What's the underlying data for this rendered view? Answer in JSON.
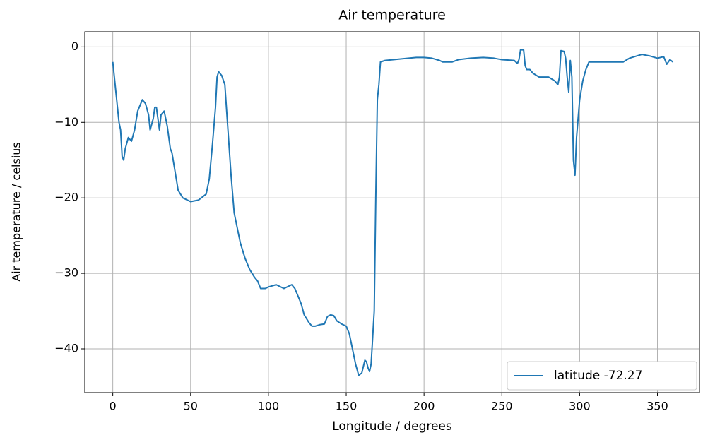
{
  "chart_data": {
    "type": "line",
    "title": "Air temperature",
    "x_label": "Longitude / degrees",
    "y_label": "Air temperature / celsius",
    "series": [
      {
        "name": "latitude -72.27",
        "color": "#1f77b4",
        "x": [
          0,
          2,
          4,
          5,
          6,
          7,
          8,
          10,
          12,
          14,
          16,
          18,
          19,
          21,
          23,
          24,
          26,
          27,
          28,
          30,
          31,
          33,
          35,
          37,
          38,
          40,
          42,
          45,
          50,
          55,
          60,
          62,
          64,
          66,
          67,
          68,
          70,
          72,
          74,
          76,
          78,
          80,
          82,
          85,
          88,
          91,
          93,
          95,
          98,
          100,
          105,
          110,
          113,
          115,
          117,
          119,
          121,
          123,
          126,
          128,
          130,
          133,
          136,
          138,
          140,
          142,
          144,
          147,
          150,
          152,
          154,
          156,
          158,
          160,
          162,
          163,
          164,
          165,
          166,
          168,
          169,
          170,
          171,
          172,
          175,
          185,
          195,
          200,
          205,
          210,
          212,
          218,
          222,
          230,
          238,
          245,
          250,
          258,
          260,
          261,
          262,
          264,
          265,
          266,
          268,
          270,
          274,
          280,
          284,
          286,
          287,
          288,
          290,
          291,
          292,
          293,
          294,
          295,
          296,
          297,
          298,
          300,
          302,
          304,
          306,
          312,
          320,
          328,
          332,
          340,
          345,
          350,
          354,
          356,
          358,
          360
        ],
        "values": [
          -2,
          -6,
          -10,
          -11,
          -14.5,
          -15,
          -13.5,
          -12,
          -12.5,
          -11,
          -8.5,
          -7.5,
          -7,
          -7.5,
          -9,
          -11,
          -9.5,
          -8,
          -8,
          -11,
          -9,
          -8.5,
          -10.5,
          -13.5,
          -14,
          -16.5,
          -19,
          -20,
          -20.5,
          -20.3,
          -19.5,
          -17.5,
          -13,
          -8,
          -4,
          -3.3,
          -3.8,
          -5,
          -11,
          -17,
          -22,
          -24,
          -26,
          -28,
          -29.5,
          -30.5,
          -31,
          -32,
          -32,
          -31.8,
          -31.5,
          -32,
          -31.7,
          -31.5,
          -32,
          -33,
          -34,
          -35.5,
          -36.5,
          -37,
          -37,
          -36.8,
          -36.7,
          -35.7,
          -35.5,
          -35.6,
          -36.3,
          -36.7,
          -37,
          -38,
          -40,
          -42,
          -43.5,
          -43.2,
          -41.5,
          -41.7,
          -42.5,
          -43,
          -42,
          -35,
          -20,
          -7,
          -5,
          -2,
          -1.8,
          -1.6,
          -1.4,
          -1.4,
          -1.5,
          -1.8,
          -2,
          -2,
          -1.7,
          -1.5,
          -1.4,
          -1.5,
          -1.7,
          -1.8,
          -2.2,
          -1.7,
          -0.4,
          -0.4,
          -2.5,
          -3,
          -3,
          -3.5,
          -4,
          -4,
          -4.5,
          -5,
          -4,
          -0.5,
          -0.6,
          -1.5,
          -4,
          -6,
          -1.8,
          -4,
          -15,
          -17,
          -12,
          -7,
          -4.5,
          -3,
          -2,
          -2,
          -2,
          -2,
          -1.5,
          -1,
          -1.2,
          -1.5,
          -1.3,
          -2.3,
          -1.7,
          -2
        ]
      }
    ],
    "xlim": [
      -18,
      377
    ],
    "ylim": [
      -45.8,
      2
    ],
    "xticks": [
      0,
      50,
      100,
      150,
      200,
      250,
      300,
      350
    ],
    "yticks": [
      {
        "value": -40,
        "label": "−40"
      },
      {
        "value": -30,
        "label": "−30"
      },
      {
        "value": -20,
        "label": "−20"
      },
      {
        "value": -10,
        "label": "−10"
      },
      0
    ],
    "grid": true,
    "legend": "lower right"
  }
}
